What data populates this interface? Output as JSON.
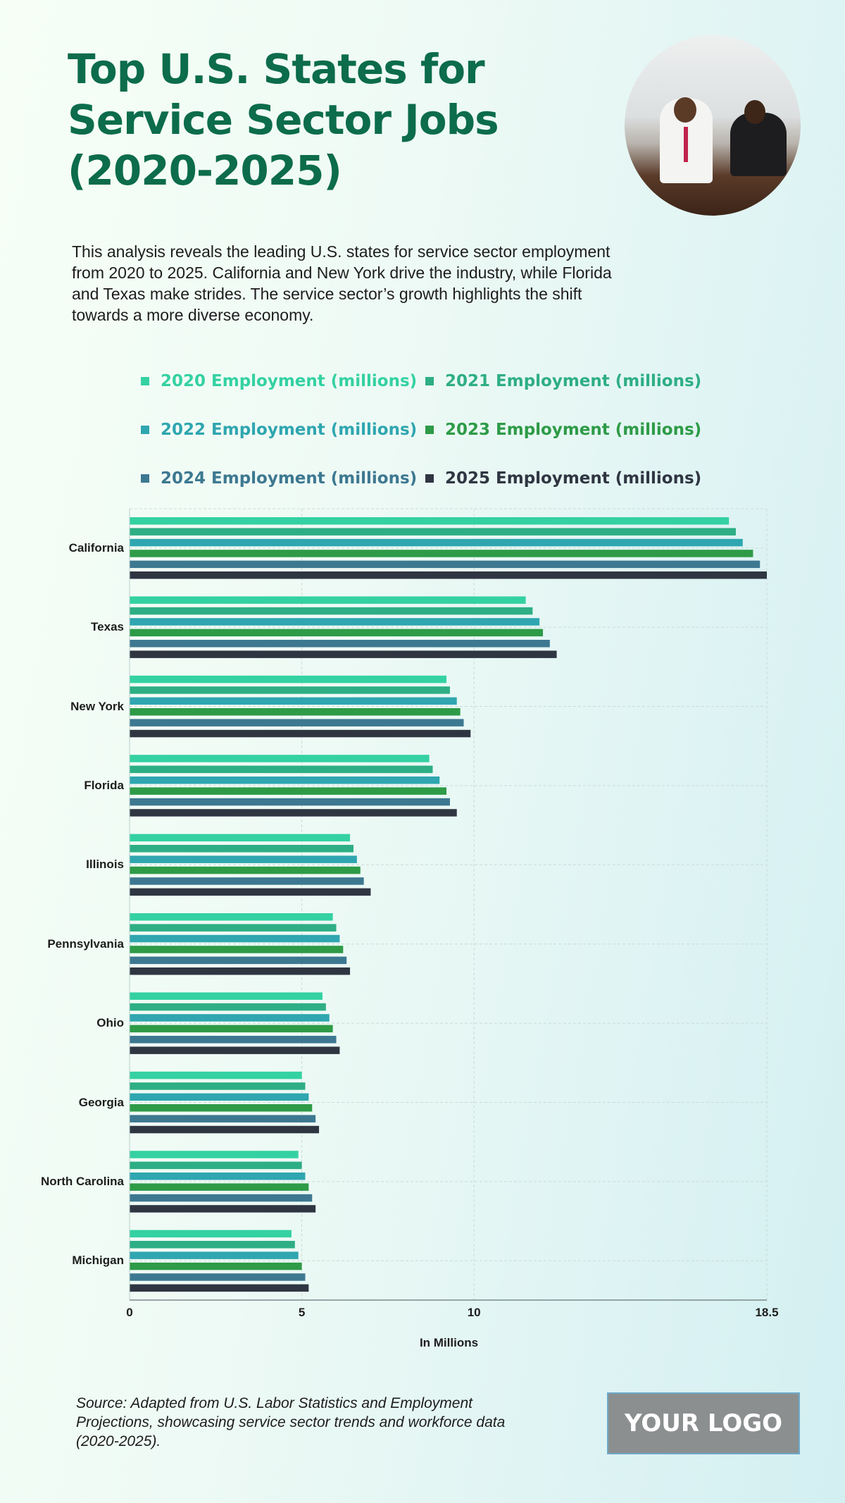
{
  "header": {
    "title": "Top U.S. States for Service Sector Jobs (2020-2025)",
    "description": "This analysis reveals the leading U.S. states for service sector employment from 2020 to 2025. California and New York drive the industry, while Florida and Texas make strides. The service sector’s growth highlights the shift towards a more diverse economy."
  },
  "chart_data": {
    "type": "bar",
    "orientation": "horizontal",
    "categories": [
      "California",
      "Texas",
      "New York",
      "Florida",
      "Illinois",
      "Pennsylvania",
      "Ohio",
      "Georgia",
      "North Carolina",
      "Michigan"
    ],
    "series": [
      {
        "name": "2020 Employment (millions)",
        "color": "#34d1a2",
        "values": [
          17.4,
          11.5,
          9.2,
          8.7,
          6.4,
          5.9,
          5.6,
          5.0,
          4.9,
          4.7
        ]
      },
      {
        "name": "2021 Employment (millions)",
        "color": "#2eae84",
        "values": [
          17.6,
          11.7,
          9.3,
          8.8,
          6.5,
          6.0,
          5.7,
          5.1,
          5.0,
          4.8
        ]
      },
      {
        "name": "2022 Employment (millions)",
        "color": "#2fa6b0",
        "values": [
          17.8,
          11.9,
          9.5,
          9.0,
          6.6,
          6.1,
          5.8,
          5.2,
          5.1,
          4.9
        ]
      },
      {
        "name": "2023 Employment (millions)",
        "color": "#2e9b47",
        "values": [
          18.1,
          12.0,
          9.6,
          9.2,
          6.7,
          6.2,
          5.9,
          5.3,
          5.2,
          5.0
        ]
      },
      {
        "name": "2024 Employment (millions)",
        "color": "#3d7891",
        "values": [
          18.3,
          12.2,
          9.7,
          9.3,
          6.8,
          6.3,
          6.0,
          5.4,
          5.3,
          5.1
        ]
      },
      {
        "name": "2025 Employment (millions)",
        "color": "#2f3642",
        "values": [
          18.5,
          12.4,
          9.9,
          9.5,
          7.0,
          6.4,
          6.1,
          5.5,
          5.4,
          5.2
        ]
      }
    ],
    "xlabel": "In Millions",
    "xlim": [
      0,
      18.5
    ],
    "xticks": [
      "0",
      "5",
      "10",
      "18.5"
    ],
    "grid": true,
    "legend_position": "top"
  },
  "footer": {
    "source": "Source: Adapted from U.S. Labor Statistics and Employment Projections, showcasing service sector trends and workforce data (2020-2025).",
    "logo": "YOUR LOGO"
  }
}
